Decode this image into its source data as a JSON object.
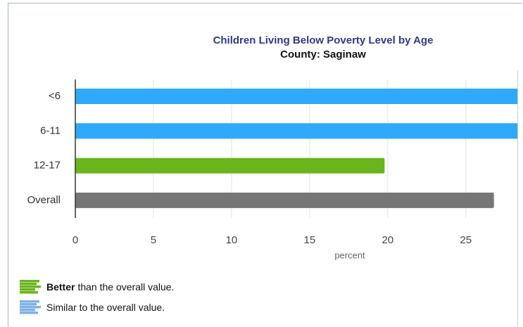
{
  "chart_data": {
    "type": "bar",
    "orientation": "horizontal",
    "title": "Children Living Below Poverty Level by Age",
    "subtitle": "County: Saginaw",
    "categories": [
      "<6",
      "6-11",
      "12-17",
      "Overall"
    ],
    "values": [
      30,
      30,
      19.8,
      26.8
    ],
    "colors": [
      "#2ea9fb",
      "#2ea9fb",
      "#6ab51e",
      "#767676"
    ],
    "xlabel": "percent",
    "xlim": [
      0,
      28.3
    ],
    "xticks": [
      0,
      5,
      10,
      15,
      20,
      25
    ],
    "grid": true,
    "legend": [
      {
        "bold": "Better",
        "text": "than the overall value.",
        "color": "#6ab51e"
      },
      {
        "text": "Similar to the overall value.",
        "color": "#7fb2e5"
      }
    ]
  }
}
